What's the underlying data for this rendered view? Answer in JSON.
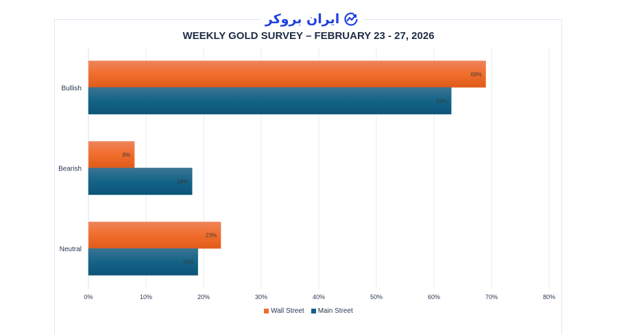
{
  "logo": {
    "text": "ایران بروکر",
    "icon": "chart-trend-icon"
  },
  "chart_data": {
    "type": "bar",
    "orientation": "horizontal",
    "title": "WEEKLY GOLD SURVEY – FEBRUARY 23 - 27, 2026",
    "categories": [
      "Bullish",
      "Bearish",
      "Neutral"
    ],
    "series": [
      {
        "name": "Wall Street",
        "values": [
          69,
          8,
          23
        ],
        "labels": [
          "69%",
          "8%",
          "23%"
        ],
        "color": "#ee6a2a"
      },
      {
        "name": "Main Street",
        "values": [
          63,
          18,
          19
        ],
        "labels": [
          "63%",
          "18%",
          "19%"
        ],
        "color": "#125f86"
      }
    ],
    "xlim": [
      0,
      80
    ],
    "xticks": [
      0,
      10,
      20,
      30,
      40,
      50,
      60,
      70,
      80
    ],
    "xtick_labels": [
      "0%",
      "10%",
      "20%",
      "30%",
      "40%",
      "50%",
      "60%",
      "70%",
      "80%"
    ],
    "grid": true,
    "legend": "bottom"
  }
}
